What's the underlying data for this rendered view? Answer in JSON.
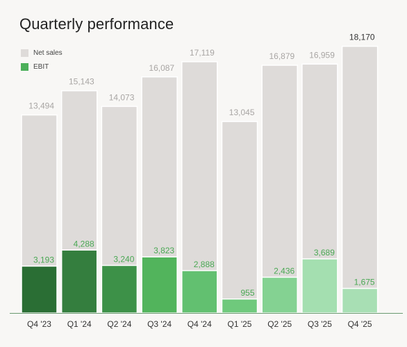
{
  "title": "Quarterly performance",
  "legend": [
    {
      "label": "Net sales",
      "color": "#dedbd9"
    },
    {
      "label": "EBIT",
      "color": "#4caf5a"
    }
  ],
  "chart_data": {
    "type": "bar",
    "title": "Quarterly performance",
    "categories": [
      "Q4 '23",
      "Q1 '24",
      "Q2 '24",
      "Q3 '24",
      "Q4 '24",
      "Q1 '25",
      "Q2 '25",
      "Q3 '25",
      "Q4 '25"
    ],
    "series": [
      {
        "name": "Net sales",
        "values": [
          13494,
          15143,
          14073,
          16087,
          17119,
          13045,
          16879,
          16959,
          18170
        ],
        "color": "#dedbd9"
      },
      {
        "name": "EBIT",
        "values": [
          3193,
          4288,
          3240,
          3823,
          2888,
          955,
          2436,
          3689,
          1675
        ],
        "colors": [
          "#2a6e34",
          "#347e3e",
          "#3d9148",
          "#52b45c",
          "#62c070",
          "#6fc97c",
          "#84d292",
          "#a4dfb0",
          "#a8dfb4"
        ]
      }
    ],
    "value_labels": {
      "net_sales": [
        "13,494",
        "15,143",
        "14,073",
        "16,087",
        "17,119",
        "13,045",
        "16,879",
        "16,959",
        "18,170"
      ],
      "ebit": [
        "3,193",
        "4,288",
        "3,240",
        "3,823",
        "2,888",
        "955",
        "2,436",
        "3,689",
        "1,675"
      ]
    },
    "label_colors": {
      "net_sales": "#a8a5a3",
      "net_sales_last": "#333333",
      "ebit": "#4aa854"
    },
    "ylim": [
      0,
      20000
    ],
    "xlabel": "",
    "ylabel": "",
    "grid": false,
    "legend_position": "top-left"
  }
}
